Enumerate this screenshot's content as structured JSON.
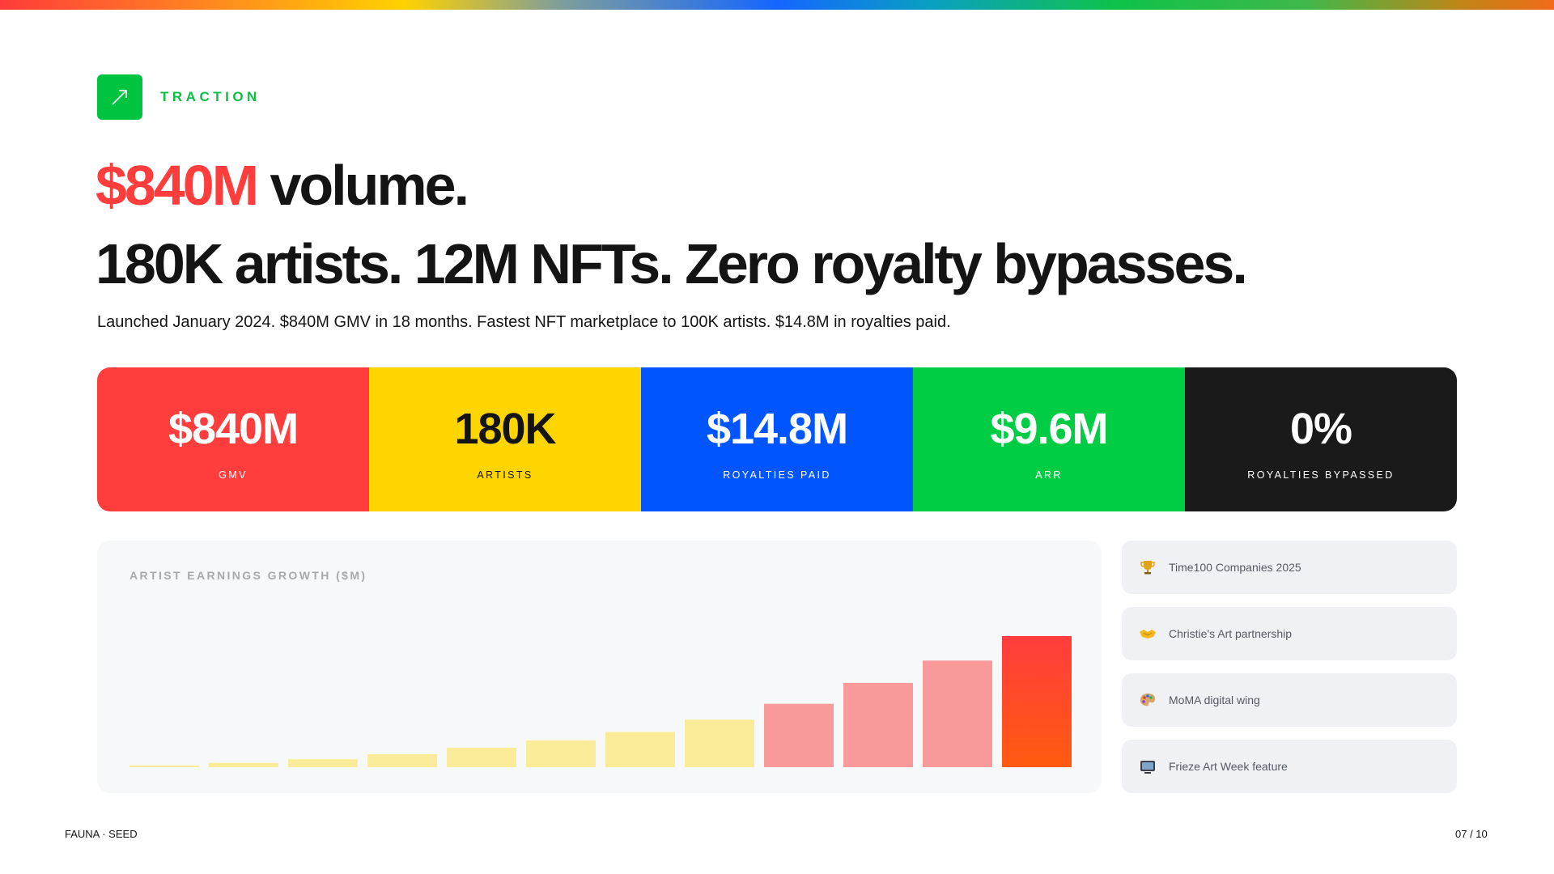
{
  "section": {
    "label": "TRACTION",
    "icon": "trending-arrow-icon"
  },
  "headline": {
    "line1_accent": "$840M",
    "line1_rest": " volume.",
    "line2": "180K artists. 12M NFTs. Zero royalty bypasses."
  },
  "subhead": "Launched January 2024. $840M GMV in 18 months. Fastest NFT marketplace to 100K artists. $14.8M in royalties paid.",
  "stats": [
    {
      "value": "$840M",
      "label": "GMV",
      "bg": "#ff3d3d",
      "fg": "#ffffff"
    },
    {
      "value": "180K",
      "label": "ARTISTS",
      "bg": "#ffd500",
      "fg": "#141414"
    },
    {
      "value": "$14.8M",
      "label": "ROYALTIES PAID",
      "bg": "#0055ff",
      "fg": "#ffffff"
    },
    {
      "value": "$9.6M",
      "label": "ARR",
      "bg": "#00cc44",
      "fg": "#ffffff"
    },
    {
      "value": "0%",
      "label": "ROYALTIES BYPASSED",
      "bg": "#1a1a1a",
      "fg": "#ffffff"
    }
  ],
  "chart_data": {
    "type": "bar",
    "title": "ARTIST EARNINGS GROWTH ($M)",
    "categories": [
      "",
      "",
      "",
      "",
      "",
      "",
      "",
      "",
      "",
      "",
      "",
      ""
    ],
    "values": [
      0.2,
      0.6,
      1.1,
      1.8,
      2.7,
      3.7,
      4.9,
      6.6,
      8.8,
      11.7,
      14.8,
      18.2
    ],
    "ylim": [
      0,
      18.2
    ],
    "colors": [
      "#faeb99",
      "#faeb99",
      "#faeb99",
      "#faeb99",
      "#faeb99",
      "#faeb99",
      "#faeb99",
      "#faeb99",
      "#f99a9a",
      "#f99a9a",
      "#f99a9a",
      "#ff3d3d"
    ],
    "grid": false
  },
  "badges": [
    {
      "icon": "trophy-icon",
      "text": "Time100 Companies 2025"
    },
    {
      "icon": "handshake-icon",
      "text": "Christie's Art partnership"
    },
    {
      "icon": "palette-icon",
      "text": "MoMA digital wing"
    },
    {
      "icon": "tv-icon",
      "text": "Frieze Art Week feature"
    }
  ],
  "footer": {
    "left": "FAUNA · SEED",
    "right": "07 / 10"
  }
}
